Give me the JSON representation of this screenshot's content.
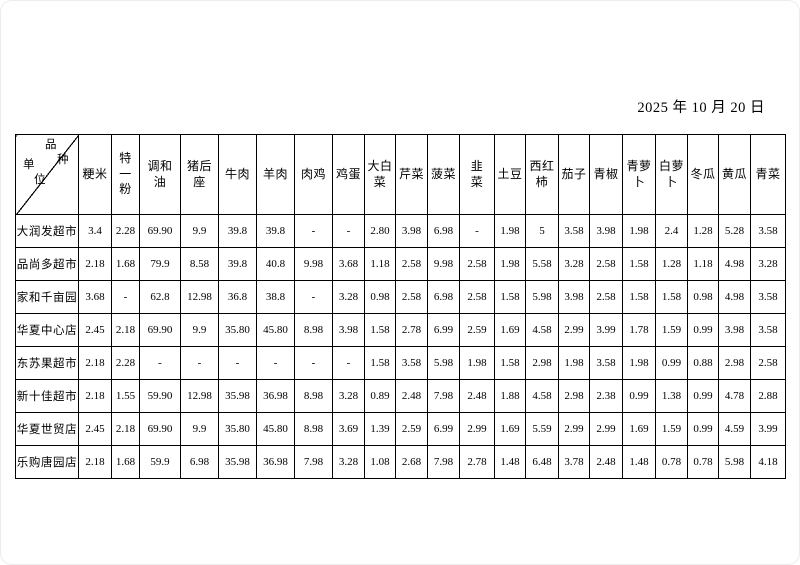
{
  "page": {
    "date": "2025 年 10 月 20 日"
  },
  "table": {
    "corner": {
      "chars": {
        "c1": "品",
        "c2": "种",
        "c3": "单",
        "c4": "位"
      }
    },
    "columns": [
      "粳米",
      "特\n一\n粉",
      "调和\n油",
      "猪后\n座",
      "牛肉",
      "羊肉",
      "肉鸡",
      "鸡蛋",
      "大白\n菜",
      "芹菜",
      "菠菜",
      "韭\n菜",
      "土豆",
      "西红\n柿",
      "茄子",
      "青椒",
      "青萝\n卜",
      "白萝\n卜",
      "冬瓜",
      "黄瓜",
      "青菜"
    ],
    "rows": [
      {
        "name": "大润发超市",
        "values": [
          "3.4",
          "2.28",
          "69.90",
          "9.9",
          "39.8",
          "39.8",
          "-",
          "-",
          "2.80",
          "3.98",
          "6.98",
          "-",
          "1.98",
          "5",
          "3.58",
          "3.98",
          "1.98",
          "2.4",
          "1.28",
          "5.28",
          "3.58"
        ]
      },
      {
        "name": "品尚多超市",
        "values": [
          "2.18",
          "1.68",
          "79.9",
          "8.58",
          "39.8",
          "40.8",
          "9.98",
          "3.68",
          "1.18",
          "2.58",
          "9.98",
          "2.58",
          "1.98",
          "5.58",
          "3.28",
          "2.58",
          "1.58",
          "1.28",
          "1.18",
          "4.98",
          "3.28"
        ]
      },
      {
        "name": "家和千亩园",
        "values": [
          "3.68",
          "-",
          "62.8",
          "12.98",
          "36.8",
          "38.8",
          "-",
          "3.28",
          "0.98",
          "2.58",
          "6.98",
          "2.58",
          "1.58",
          "5.98",
          "3.98",
          "2.58",
          "1.58",
          "1.58",
          "0.98",
          "4.98",
          "3.58"
        ]
      },
      {
        "name": "华夏中心店",
        "values": [
          "2.45",
          "2.18",
          "69.90",
          "9.9",
          "35.80",
          "45.80",
          "8.98",
          "3.98",
          "1.58",
          "2.78",
          "6.99",
          "2.59",
          "1.69",
          "4.58",
          "2.99",
          "3.99",
          "1.78",
          "1.59",
          "0.99",
          "3.98",
          "3.58"
        ]
      },
      {
        "name": "东苏果超市",
        "values": [
          "2.18",
          "2.28",
          "-",
          "-",
          "-",
          "-",
          "-",
          "-",
          "1.58",
          "3.58",
          "5.98",
          "1.98",
          "1.58",
          "2.98",
          "1.98",
          "3.58",
          "1.98",
          "0.99",
          "0.88",
          "2.98",
          "2.58"
        ]
      },
      {
        "name": "新十佳超市",
        "values": [
          "2.18",
          "1.55",
          "59.90",
          "12.98",
          "35.98",
          "36.98",
          "8.98",
          "3.28",
          "0.89",
          "2.48",
          "7.98",
          "2.48",
          "1.88",
          "4.58",
          "2.98",
          "2.38",
          "0.99",
          "1.38",
          "0.99",
          "4.78",
          "2.88"
        ]
      },
      {
        "name": "华夏世贸店",
        "values": [
          "2.45",
          "2.18",
          "69.90",
          "9.9",
          "35.80",
          "45.80",
          "8.98",
          "3.69",
          "1.39",
          "2.59",
          "6.99",
          "2.99",
          "1.69",
          "5.59",
          "2.99",
          "2.99",
          "1.69",
          "1.59",
          "0.99",
          "4.59",
          "3.99"
        ]
      },
      {
        "name": "乐购唐园店",
        "values": [
          "2.18",
          "1.68",
          "59.9",
          "6.98",
          "35.98",
          "36.98",
          "7.98",
          "3.28",
          "1.08",
          "2.68",
          "7.98",
          "2.78",
          "1.48",
          "6.48",
          "3.78",
          "2.48",
          "1.48",
          "0.78",
          "0.78",
          "5.98",
          "4.18"
        ]
      }
    ]
  }
}
